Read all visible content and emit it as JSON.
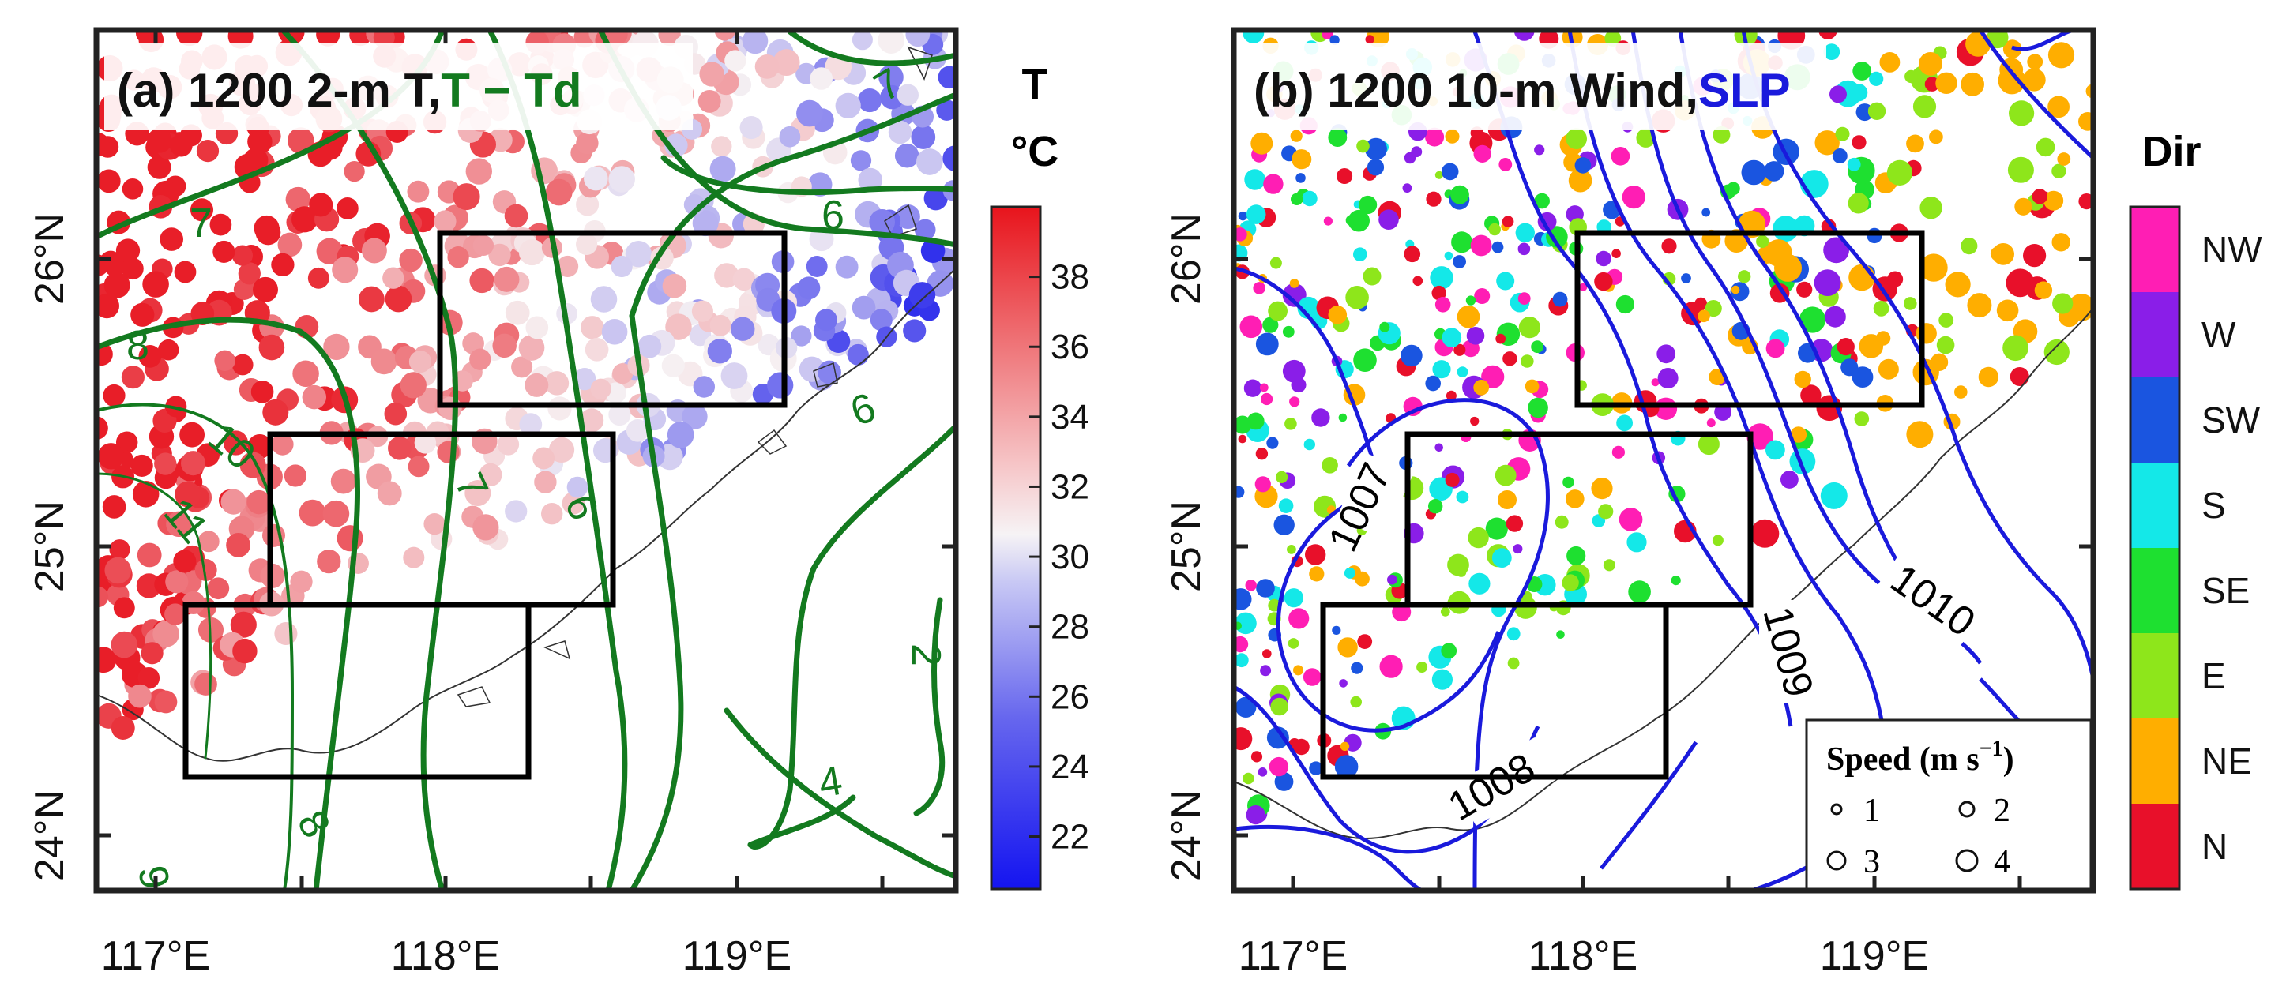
{
  "panel_a": {
    "title_prefix": "(a) 1200 2-m T,",
    "title_contour": "T − Td",
    "colorbar_title_var": "T",
    "colorbar_title_unit": "°C",
    "colorbar_ticks": [
      "22",
      "24",
      "26",
      "28",
      "30",
      "32",
      "34",
      "36",
      "38"
    ],
    "contour_labels": [
      "7",
      "6",
      "8",
      "10",
      "7",
      "6",
      "11",
      "8",
      "9",
      "4",
      "2",
      "7",
      "6"
    ],
    "colors": {
      "warm": "#e8232a",
      "cool": "#1f1fe6",
      "contour": "#137a1f"
    }
  },
  "panel_b": {
    "title_prefix": "(b) 1200 10-m Wind,",
    "title_contour": "SLP",
    "colorbar_title": "Dir",
    "direction_labels": [
      "NW",
      "W",
      "SW",
      "S",
      "SE",
      "E",
      "NE",
      "N"
    ],
    "isobar_labels": [
      "1007",
      "1008",
      "1009",
      "1010"
    ],
    "legend": {
      "title": "Speed (m s",
      "title_exp": "−1",
      "title_close": ")",
      "entries": [
        "1",
        "2",
        "3",
        "4"
      ]
    },
    "colors": {
      "isobar": "#1a1adc"
    }
  },
  "axes": {
    "x_ticks": [
      "117°E",
      "118°E",
      "119°E"
    ],
    "y_ticks": [
      "24°N",
      "25°N",
      "26°N"
    ]
  }
}
